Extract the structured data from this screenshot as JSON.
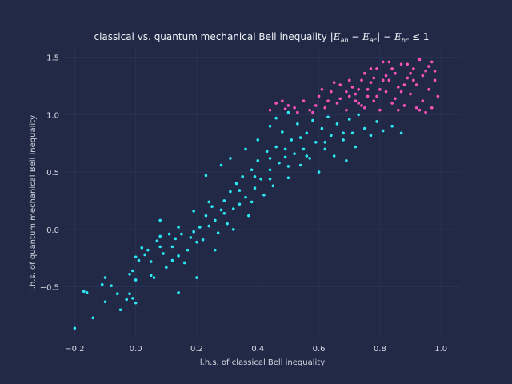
{
  "chart_data": {
    "type": "scatter",
    "title": "classical vs. quantum mechanical Bell inequality |E_ab − E_ac| − E_bc ≤ 1",
    "title_parts": {
      "prefix": "classical vs. quantum mechanical Bell inequality ",
      "formula": {
        "open_bar": "|",
        "E": "E",
        "sub_ab": "ab",
        "minus1": " − ",
        "sub_ac": "ac",
        "close_bar": "|",
        "minus2": " − ",
        "sub_bc": "bc",
        "leq_one": " ≤ 1"
      }
    },
    "xlabel": "l.h.s. of classical Bell inequality",
    "ylabel": "l.h.s. of quantum mechanical Bell inequality",
    "xlim": [
      -0.235,
      1.065
    ],
    "ylim": [
      -0.935,
      1.595
    ],
    "xticks": [
      -0.2,
      0.0,
      0.2,
      0.4,
      0.6,
      0.8,
      1.0
    ],
    "xtick_labels": [
      "−0.2",
      "0.0",
      "0.2",
      "0.4",
      "0.6",
      "0.8",
      "1.0"
    ],
    "yticks": [
      -0.5,
      0.0,
      0.5,
      1.0,
      1.5
    ],
    "ytick_labels": [
      "−0.5",
      "0.0",
      "0.5",
      "1.0",
      "1.5"
    ],
    "grid": true,
    "colors": {
      "background": "#212946",
      "grid": "#2A3459",
      "text": "#d6d9e3"
    },
    "series": [
      {
        "color": "#2CE8F5",
        "points": [
          [
            -0.2,
            -0.86
          ],
          [
            -0.17,
            -0.54
          ],
          [
            -0.16,
            -0.55
          ],
          [
            -0.14,
            -0.77
          ],
          [
            -0.11,
            -0.48
          ],
          [
            -0.1,
            -0.42
          ],
          [
            -0.1,
            -0.63
          ],
          [
            -0.08,
            -0.49
          ],
          [
            -0.06,
            -0.56
          ],
          [
            -0.05,
            -0.7
          ],
          [
            -0.03,
            -0.61
          ],
          [
            -0.02,
            -0.56
          ],
          [
            -0.01,
            -0.6
          ],
          [
            -0.02,
            -0.39
          ],
          [
            -0.01,
            -0.36
          ],
          [
            0.0,
            -0.64
          ],
          [
            0.0,
            -0.44
          ],
          [
            0.01,
            -0.27
          ],
          [
            0.0,
            -0.24
          ],
          [
            0.02,
            -0.16
          ],
          [
            0.03,
            -0.22
          ],
          [
            0.04,
            -0.18
          ],
          [
            0.05,
            -0.4
          ],
          [
            0.05,
            -0.28
          ],
          [
            0.06,
            -0.42
          ],
          [
            0.07,
            -0.1
          ],
          [
            0.08,
            -0.15
          ],
          [
            0.08,
            -0.06
          ],
          [
            0.09,
            -0.21
          ],
          [
            0.1,
            -0.33
          ],
          [
            0.11,
            -0.04
          ],
          [
            0.12,
            -0.15
          ],
          [
            0.12,
            -0.27
          ],
          [
            0.13,
            -0.08
          ],
          [
            0.14,
            -0.23
          ],
          [
            0.15,
            -0.04
          ],
          [
            0.16,
            -0.29
          ],
          [
            0.17,
            -0.18
          ],
          [
            0.18,
            -0.07
          ],
          [
            0.19,
            -0.02
          ],
          [
            0.2,
            -0.11
          ],
          [
            0.21,
            0.02
          ],
          [
            0.22,
            -0.09
          ],
          [
            0.23,
            0.12
          ],
          [
            0.24,
            0.03
          ],
          [
            0.25,
            0.2
          ],
          [
            0.26,
            0.08
          ],
          [
            0.27,
            -0.03
          ],
          [
            0.28,
            0.17
          ],
          [
            0.29,
            0.25
          ],
          [
            0.3,
            0.05
          ],
          [
            0.31,
            0.33
          ],
          [
            0.32,
            0.18
          ],
          [
            0.33,
            0.4
          ],
          [
            0.34,
            0.22
          ],
          [
            0.35,
            0.46
          ],
          [
            0.36,
            0.28
          ],
          [
            0.37,
            0.12
          ],
          [
            0.38,
            0.52
          ],
          [
            0.39,
            0.36
          ],
          [
            0.4,
            0.6
          ],
          [
            0.41,
            0.44
          ],
          [
            0.42,
            0.3
          ],
          [
            0.43,
            0.68
          ],
          [
            0.44,
            0.52
          ],
          [
            0.45,
            0.38
          ],
          [
            0.46,
            0.72
          ],
          [
            0.47,
            0.58
          ],
          [
            0.48,
            0.85
          ],
          [
            0.49,
            0.63
          ],
          [
            0.5,
            0.45
          ],
          [
            0.51,
            0.78
          ],
          [
            0.52,
            0.66
          ],
          [
            0.53,
            0.92
          ],
          [
            0.54,
            0.56
          ],
          [
            0.55,
            0.7
          ],
          [
            0.56,
            0.84
          ],
          [
            0.57,
            0.62
          ],
          [
            0.58,
            0.95
          ],
          [
            0.59,
            0.76
          ],
          [
            0.6,
            0.5
          ],
          [
            0.61,
            0.88
          ],
          [
            0.62,
            0.7
          ],
          [
            0.63,
            0.98
          ],
          [
            0.64,
            0.82
          ],
          [
            0.65,
            0.64
          ],
          [
            0.66,
            0.92
          ],
          [
            0.68,
            0.78
          ],
          [
            0.69,
            0.6
          ],
          [
            0.7,
            0.96
          ],
          [
            0.71,
            0.84
          ],
          [
            0.72,
            0.72
          ],
          [
            0.73,
            1.0
          ],
          [
            0.75,
            0.88
          ],
          [
            0.77,
            0.82
          ],
          [
            0.79,
            0.94
          ],
          [
            0.81,
            0.86
          ],
          [
            0.84,
            0.9
          ],
          [
            0.87,
            0.84
          ],
          [
            0.08,
            0.08
          ],
          [
            0.14,
            0.02
          ],
          [
            0.19,
            0.16
          ],
          [
            0.24,
            0.24
          ],
          [
            0.29,
            0.14
          ],
          [
            0.34,
            0.34
          ],
          [
            0.39,
            0.46
          ],
          [
            0.44,
            0.62
          ],
          [
            0.49,
            0.7
          ],
          [
            0.54,
            0.8
          ],
          [
            0.14,
            -0.55
          ],
          [
            0.2,
            -0.42
          ],
          [
            0.26,
            -0.18
          ],
          [
            0.32,
            0.0
          ],
          [
            0.38,
            0.24
          ],
          [
            0.44,
            0.44
          ],
          [
            0.5,
            0.55
          ],
          [
            0.56,
            0.64
          ],
          [
            0.62,
            0.76
          ],
          [
            0.68,
            0.84
          ],
          [
            0.23,
            0.47
          ],
          [
            0.28,
            0.56
          ],
          [
            0.31,
            0.62
          ],
          [
            0.36,
            0.7
          ],
          [
            0.4,
            0.78
          ],
          [
            0.44,
            0.9
          ],
          [
            0.46,
            0.97
          ],
          [
            0.5,
            1.02
          ]
        ]
      },
      {
        "color": "#FE53BB",
        "points": [
          [
            0.44,
            1.04
          ],
          [
            0.46,
            1.1
          ],
          [
            0.48,
            1.12
          ],
          [
            0.5,
            1.08
          ],
          [
            0.52,
            1.06
          ],
          [
            0.55,
            1.12
          ],
          [
            0.58,
            1.02
          ],
          [
            0.6,
            1.16
          ],
          [
            0.62,
            1.06
          ],
          [
            0.64,
            1.2
          ],
          [
            0.66,
            1.1
          ],
          [
            0.67,
            1.26
          ],
          [
            0.69,
            1.04
          ],
          [
            0.7,
            1.3
          ],
          [
            0.72,
            1.18
          ],
          [
            0.73,
            1.22
          ],
          [
            0.74,
            1.08
          ],
          [
            0.75,
            1.36
          ],
          [
            0.76,
            1.16
          ],
          [
            0.77,
            1.28
          ],
          [
            0.78,
            1.12
          ],
          [
            0.79,
            1.4
          ],
          [
            0.8,
            1.04
          ],
          [
            0.81,
            1.3
          ],
          [
            0.82,
            1.2
          ],
          [
            0.83,
            1.46
          ],
          [
            0.84,
            1.1
          ],
          [
            0.85,
            1.36
          ],
          [
            0.86,
            1.24
          ],
          [
            0.87,
            1.44
          ],
          [
            0.88,
            1.08
          ],
          [
            0.89,
            1.32
          ],
          [
            0.9,
            1.18
          ],
          [
            0.91,
            1.4
          ],
          [
            0.92,
            1.26
          ],
          [
            0.93,
            1.48
          ],
          [
            0.94,
            1.12
          ],
          [
            0.95,
            1.38
          ],
          [
            0.96,
            1.22
          ],
          [
            0.97,
            1.46
          ],
          [
            0.98,
            1.3
          ],
          [
            0.99,
            1.16
          ],
          [
            0.97,
            1.06
          ],
          [
            0.95,
            1.02
          ],
          [
            0.93,
            1.04
          ],
          [
            0.91,
            1.3
          ],
          [
            0.89,
            1.44
          ],
          [
            0.87,
            1.2
          ],
          [
            0.85,
            1.14
          ],
          [
            0.83,
            1.3
          ],
          [
            0.81,
            1.46
          ],
          [
            0.79,
            1.16
          ],
          [
            0.77,
            1.4
          ],
          [
            0.75,
            1.06
          ],
          [
            0.73,
            1.1
          ],
          [
            0.71,
            1.24
          ],
          [
            0.69,
            1.2
          ],
          [
            0.67,
            1.14
          ],
          [
            0.65,
            1.28
          ],
          [
            0.63,
            1.12
          ],
          [
            0.61,
            1.22
          ],
          [
            0.59,
            1.08
          ],
          [
            0.57,
            1.04
          ],
          [
            0.53,
            1.02
          ],
          [
            0.49,
            1.05
          ],
          [
            0.94,
            1.34
          ],
          [
            0.96,
            1.42
          ],
          [
            0.98,
            1.38
          ],
          [
            0.92,
            1.06
          ],
          [
            0.9,
            1.36
          ],
          [
            0.88,
            1.26
          ],
          [
            0.86,
            1.04
          ],
          [
            0.84,
            1.4
          ],
          [
            0.82,
            1.34
          ],
          [
            0.8,
            1.22
          ],
          [
            0.78,
            1.32
          ],
          [
            0.76,
            1.22
          ],
          [
            0.74,
            1.3
          ],
          [
            0.72,
            1.12
          ],
          [
            0.7,
            1.16
          ]
        ]
      }
    ]
  }
}
